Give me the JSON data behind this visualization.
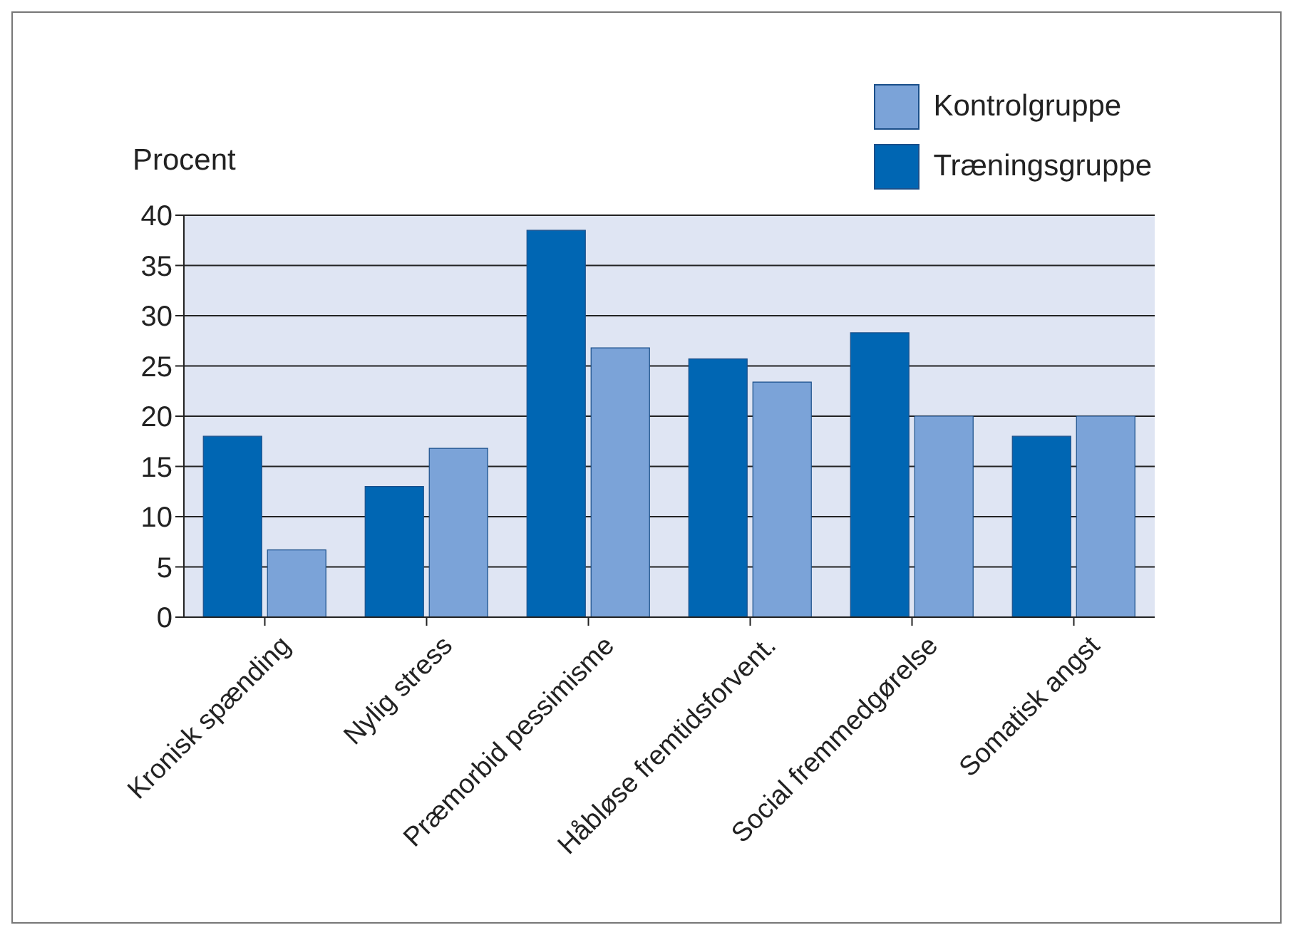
{
  "chart_data": {
    "type": "bar",
    "ylabel": "Procent",
    "categories": [
      "Kronisk spænding",
      "Nylig stress",
      "Præmorbid pessimisme",
      "Håbløse fremtidsforvent.",
      "Social fremmedgørelse",
      "Somatisk angst"
    ],
    "series": [
      {
        "name": "Træningsgruppe",
        "color": "#0066b3",
        "values": [
          18,
          13,
          38.5,
          25.7,
          28.3,
          18
        ]
      },
      {
        "name": "Kontrolgruppe",
        "color": "#7ba3d8",
        "values": [
          6.7,
          16.8,
          26.8,
          23.4,
          20,
          20
        ]
      }
    ],
    "ylim": [
      0,
      40
    ],
    "yticks": [
      0,
      5,
      10,
      15,
      20,
      25,
      30,
      35,
      40
    ],
    "grid": "y",
    "legend": "top right"
  }
}
